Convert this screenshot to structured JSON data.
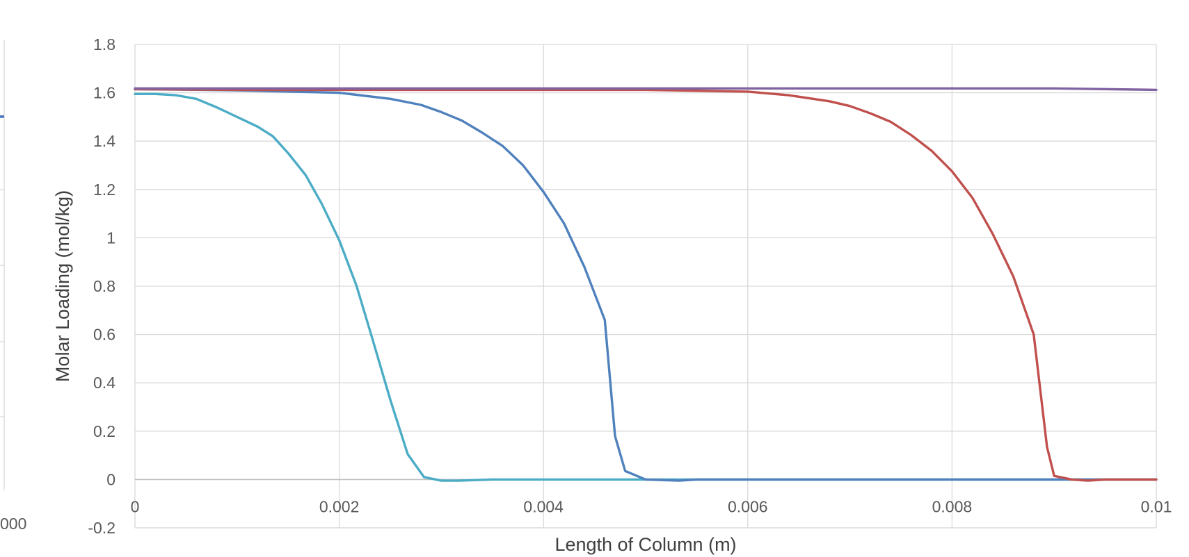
{
  "chart_data": {
    "type": "line",
    "title": "",
    "xlabel": "Length of Column (m)",
    "ylabel": "Molar Loading (mol/kg)",
    "xlim": [
      0,
      0.01
    ],
    "ylim": [
      -0.2,
      1.8
    ],
    "x_ticks": [
      "0",
      "0.002",
      "0.004",
      "0.006",
      "0.008",
      "0.01"
    ],
    "y_ticks": [
      "-0.2",
      "0",
      "0.2",
      "0.4",
      "0.6",
      "0.8",
      "1",
      "1.2",
      "1.4",
      "1.6",
      "1.8"
    ],
    "grid": true,
    "legend": "none",
    "partial_neighbor_chart": {
      "tick_label": "000",
      "line_color": "#4472c4"
    },
    "series": [
      {
        "color": "#4bacc6",
        "x": [
          0,
          0.0002,
          0.0004,
          0.0006,
          0.0008,
          0.001,
          0.0012,
          0.00135,
          0.0015,
          0.00167,
          0.00183,
          0.002,
          0.00217,
          0.00233,
          0.0025,
          0.00267,
          0.00283,
          0.003,
          0.00317,
          0.0035,
          0.004,
          0.005,
          0.006,
          0.007,
          0.008,
          0.009,
          0.01
        ],
        "y": [
          1.595,
          1.595,
          1.59,
          1.575,
          1.54,
          1.5,
          1.46,
          1.42,
          1.35,
          1.26,
          1.14,
          0.99,
          0.8,
          0.575,
          0.33,
          0.105,
          0.01,
          -0.005,
          -0.005,
          0,
          0,
          0,
          0,
          0,
          0,
          0,
          0
        ]
      },
      {
        "color": "#4f81bd",
        "x": [
          0,
          0.001,
          0.002,
          0.0025,
          0.0028,
          0.003,
          0.0032,
          0.0034,
          0.0036,
          0.0038,
          0.004,
          0.0042,
          0.0044,
          0.0046,
          0.0047,
          0.0048,
          0.005,
          0.00533,
          0.0055,
          0.006,
          0.007,
          0.008,
          0.009,
          0.01
        ],
        "y": [
          1.615,
          1.61,
          1.6,
          1.575,
          1.55,
          1.52,
          1.485,
          1.435,
          1.38,
          1.3,
          1.19,
          1.06,
          0.88,
          0.66,
          0.18,
          0.035,
          0,
          -0.005,
          0,
          0,
          0,
          0,
          0,
          0
        ]
      },
      {
        "color": "#c0504d",
        "x": [
          0,
          0.001,
          0.002,
          0.003,
          0.004,
          0.005,
          0.006,
          0.0064,
          0.0068,
          0.007,
          0.0072,
          0.0074,
          0.0076,
          0.0078,
          0.008,
          0.0082,
          0.0084,
          0.0086,
          0.0088,
          0.00893,
          0.009,
          0.00917,
          0.00933,
          0.0095,
          0.01
        ],
        "y": [
          1.615,
          1.612,
          1.612,
          1.612,
          1.612,
          1.612,
          1.605,
          1.59,
          1.565,
          1.545,
          1.515,
          1.48,
          1.425,
          1.36,
          1.275,
          1.165,
          1.015,
          0.84,
          0.6,
          0.135,
          0.015,
          0,
          -0.005,
          0,
          0
        ]
      },
      {
        "color": "#8064a2",
        "x": [
          0,
          0.001,
          0.002,
          0.003,
          0.004,
          0.005,
          0.006,
          0.007,
          0.008,
          0.009,
          0.01
        ],
        "y": [
          1.618,
          1.618,
          1.618,
          1.618,
          1.618,
          1.618,
          1.618,
          1.618,
          1.618,
          1.618,
          1.612
        ]
      }
    ]
  }
}
